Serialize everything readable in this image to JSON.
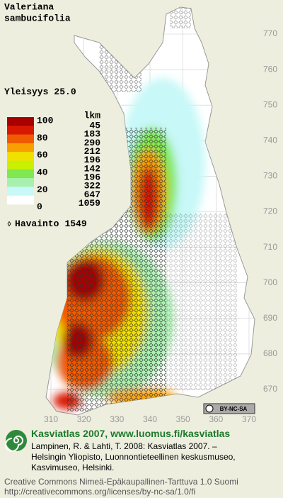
{
  "title": [
    "Valeriana",
    "sambucifolia"
  ],
  "frequency": {
    "label": "Yleisyys",
    "value": "25.0"
  },
  "legend": {
    "header": "lkm",
    "scale": [
      100,
      80,
      60,
      40,
      20,
      0
    ],
    "counts": [
      45,
      183,
      290,
      212,
      196,
      142,
      196,
      322,
      647,
      1059
    ],
    "colors": [
      "#a80000",
      "#d81800",
      "#f05a00",
      "#f8a000",
      "#f0e000",
      "#c8f000",
      "#80e850",
      "#a8f0b0",
      "#c8f8f8",
      "#ffffff"
    ]
  },
  "observations": {
    "label": "Havainto",
    "count": 1549
  },
  "map": {
    "yticks": [
      670,
      680,
      690,
      700,
      710,
      720,
      730,
      740,
      750,
      760,
      770
    ],
    "xticks": [
      310,
      320,
      330,
      340,
      350,
      360,
      370
    ]
  },
  "license_badge": "BY-NC-SA",
  "footer": {
    "headline": "Kasviatlas 2007, www.luomus.fi/kasviatlas",
    "citation": [
      "Lampinen, R. & Lahti, T. 2008: Kasviatlas 2007. –",
      "Helsingin Yliopisto, Luonnontieteellinen keskusmuseo,",
      "Kasvimuseo, Helsinki."
    ],
    "license": [
      "Creative Commons Nimeä-Epäkaupallinen-Tarttuva 1.0 Suomi",
      "http://creativecommons.org/licenses/by-nc-sa/1.0/fi"
    ]
  }
}
